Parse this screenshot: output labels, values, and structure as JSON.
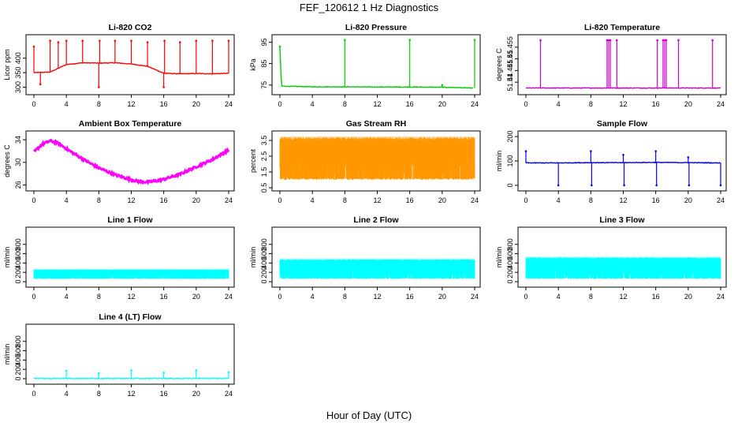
{
  "title": "FEF_120612  1 Hz Diagnostics",
  "xlabel": "Hour of Day (UTC)",
  "chart_data": [
    {
      "type": "line",
      "title": "Li-820 CO2",
      "ylabel": "Licor ppm",
      "color": "#ff0000",
      "xlim": [
        0,
        24
      ],
      "ylim": [
        285,
        470
      ],
      "x_ticks": [
        0,
        4,
        8,
        12,
        16,
        20,
        24
      ],
      "y_ticks": [
        300,
        350,
        400
      ],
      "series": [
        {
          "x": [
            0,
            2,
            4,
            6,
            8,
            10,
            12,
            14,
            16,
            18,
            20,
            22,
            24
          ],
          "y": [
            350,
            352,
            378,
            384,
            383,
            384,
            380,
            372,
            348,
            346,
            347,
            346,
            348
          ]
        }
      ],
      "spikes": [
        [
          0,
          440
        ],
        [
          0.8,
          310
        ],
        [
          2,
          460
        ],
        [
          3,
          455
        ],
        [
          4,
          460
        ],
        [
          6,
          460
        ],
        [
          8,
          300
        ],
        [
          8.1,
          460
        ],
        [
          10,
          460
        ],
        [
          12,
          460
        ],
        [
          14,
          455
        ],
        [
          16,
          300
        ],
        [
          16.1,
          460
        ],
        [
          18,
          455
        ],
        [
          20,
          460
        ],
        [
          22,
          460
        ],
        [
          24,
          460
        ]
      ]
    },
    {
      "type": "line",
      "title": "Li-820 Pressure",
      "ylabel": "kPa",
      "color": "#00cc00",
      "xlim": [
        0,
        24
      ],
      "ylim": [
        72,
        97
      ],
      "x_ticks": [
        0,
        4,
        8,
        12,
        16,
        20,
        24
      ],
      "y_ticks": [
        75,
        85,
        95
      ],
      "series": [
        {
          "x": [
            0,
            0.2,
            4,
            8,
            12,
            16,
            20,
            22,
            23.8
          ],
          "y": [
            92,
            74.5,
            74.2,
            74.2,
            74.1,
            74.1,
            74.0,
            73.8,
            73.6
          ]
        }
      ],
      "spikes": [
        [
          0,
          93
        ],
        [
          8,
          96
        ],
        [
          16,
          96
        ],
        [
          20,
          75
        ],
        [
          24,
          96
        ]
      ]
    },
    {
      "type": "line",
      "title": "Li-820 Temperature",
      "ylabel": "degrees C",
      "color": "#cc00cc",
      "xlim": [
        0,
        24
      ],
      "ylim": [
        51.436,
        51.459
      ],
      "x_ticks": [
        0,
        4,
        8,
        12,
        16,
        20,
        24
      ],
      "y_ticks": [
        51.44,
        51.445,
        51.45,
        51.455
      ],
      "series": [
        {
          "x": [
            0,
            24
          ],
          "y": [
            51.4375,
            51.4375
          ]
        }
      ],
      "spikes": [
        [
          1.8,
          51.458
        ],
        [
          10.0,
          51.458
        ],
        [
          10.2,
          51.458
        ],
        [
          10.4,
          51.458
        ],
        [
          11.2,
          51.458
        ],
        [
          16.2,
          51.458
        ],
        [
          16.9,
          51.458
        ],
        [
          17.1,
          51.458
        ],
        [
          17.3,
          51.458
        ],
        [
          18.8,
          51.458
        ],
        [
          23.0,
          51.458
        ]
      ]
    },
    {
      "type": "line",
      "title": "Ambient Box Temperature",
      "ylabel": "degrees C",
      "color": "#ff00ff",
      "xlim": [
        0,
        24
      ],
      "ylim": [
        25.5,
        35
      ],
      "x_ticks": [
        0,
        4,
        8,
        12,
        16,
        20,
        24
      ],
      "y_ticks": [
        26,
        30,
        34
      ],
      "series": [
        {
          "x": [
            0,
            1,
            2,
            3,
            4,
            6,
            8,
            10,
            12,
            13,
            14,
            15,
            16,
            18,
            20,
            22,
            24
          ],
          "y": [
            31.8,
            33.2,
            33.8,
            33.4,
            32.4,
            30.6,
            29.0,
            27.8,
            26.9,
            26.6,
            26.5,
            26.7,
            27.0,
            27.9,
            29.2,
            30.5,
            32.2
          ]
        }
      ]
    },
    {
      "type": "area",
      "title": "Gas Stream RH",
      "ylabel": "percent",
      "color": "#ff9900",
      "xlim": [
        0,
        24
      ],
      "ylim": [
        0.5,
        3.9
      ],
      "x_ticks": [
        0,
        4,
        8,
        12,
        16,
        20,
        24
      ],
      "y_ticks": [
        0.5,
        1.5,
        2.5,
        3.5
      ],
      "band": {
        "low": 1.0,
        "high": 3.7
      }
    },
    {
      "type": "line",
      "title": "Sample Flow",
      "ylabel": "ml/min",
      "color": "#0000ff",
      "xlim": [
        0,
        24
      ],
      "ylim": [
        -10,
        210
      ],
      "x_ticks": [
        0,
        4,
        8,
        12,
        16,
        20,
        24
      ],
      "y_ticks": [
        0,
        100,
        200
      ],
      "series": [
        {
          "x": [
            0,
            4,
            8,
            12,
            16,
            20,
            24
          ],
          "y": [
            92,
            92,
            93,
            93,
            94,
            93,
            92
          ]
        }
      ],
      "spikes": [
        [
          0,
          140
        ],
        [
          4,
          0
        ],
        [
          8,
          140
        ],
        [
          8.1,
          0
        ],
        [
          12,
          125
        ],
        [
          12.1,
          0
        ],
        [
          16,
          140
        ],
        [
          16.1,
          0
        ],
        [
          20,
          115
        ],
        [
          20.1,
          0
        ],
        [
          24,
          0
        ]
      ]
    },
    {
      "type": "area",
      "title": "Line 1 Flow",
      "ylabel": "ml/min",
      "color": "#00ffff",
      "xlim": [
        0,
        24
      ],
      "ylim": [
        -50,
        1100
      ],
      "x_ticks": [
        0,
        4,
        8,
        12,
        16,
        20,
        24
      ],
      "y_ticks": [
        0,
        200,
        400,
        600,
        800
      ],
      "band": {
        "low": 60,
        "high": 260
      }
    },
    {
      "type": "area",
      "title": "Line 2 Flow",
      "ylabel": "ml/min",
      "color": "#00ffff",
      "xlim": [
        0,
        24
      ],
      "ylim": [
        -50,
        1100
      ],
      "x_ticks": [
        0,
        4,
        8,
        12,
        16,
        20,
        24
      ],
      "y_ticks": [
        0,
        200,
        400,
        600,
        800
      ],
      "band": {
        "low": 60,
        "high": 480
      }
    },
    {
      "type": "area",
      "title": "Line 3 Flow",
      "ylabel": "ml/min",
      "color": "#00ffff",
      "xlim": [
        0,
        24
      ],
      "ylim": [
        -50,
        1100
      ],
      "x_ticks": [
        0,
        4,
        8,
        12,
        16,
        20,
        24
      ],
      "y_ticks": [
        0,
        200,
        400,
        600,
        800
      ],
      "band": {
        "low": 60,
        "high": 520
      }
    },
    {
      "type": "line",
      "title": "Line 4 (LT) Flow",
      "ylabel": "ml/min",
      "color": "#00ffff",
      "xlim": [
        0,
        24
      ],
      "ylim": [
        -50,
        1100
      ],
      "x_ticks": [
        0,
        4,
        8,
        12,
        16,
        20,
        24
      ],
      "y_ticks": [
        0,
        200,
        400,
        600,
        800
      ],
      "series": [
        {
          "x": [
            0,
            24
          ],
          "y": [
            5,
            5
          ]
        }
      ],
      "spikes": [
        [
          4,
          170
        ],
        [
          8,
          120
        ],
        [
          12,
          180
        ],
        [
          16,
          130
        ],
        [
          20,
          180
        ],
        [
          24,
          140
        ]
      ]
    }
  ]
}
